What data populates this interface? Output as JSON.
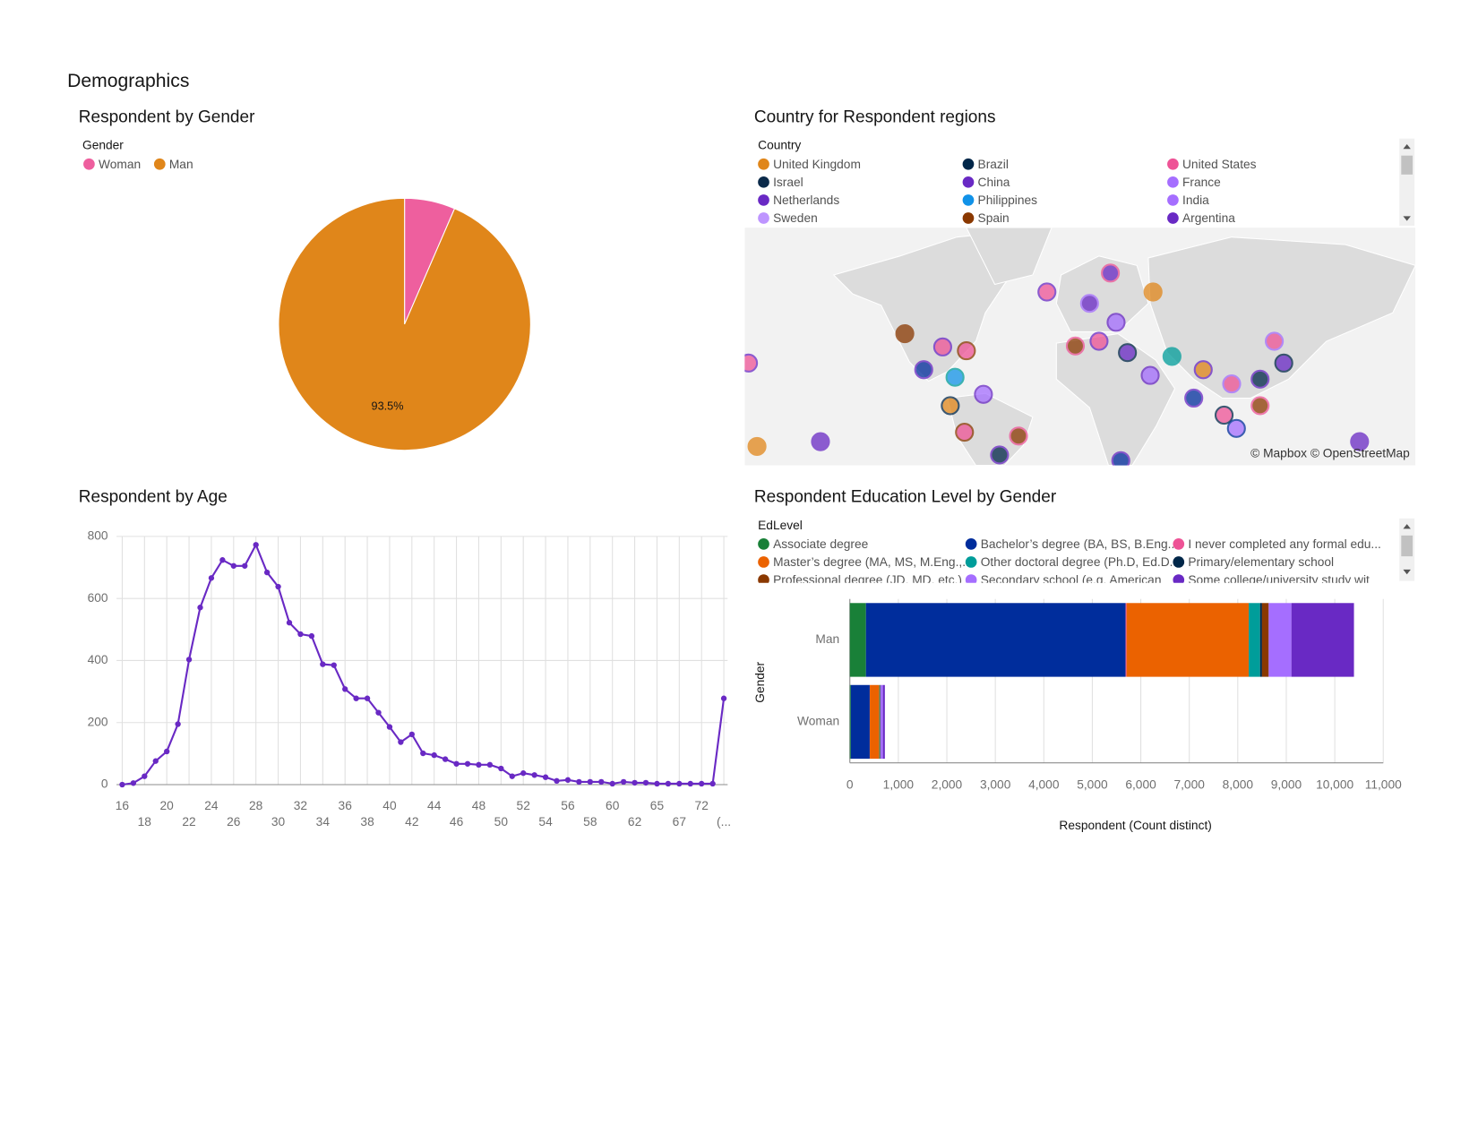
{
  "page_title": "Demographics",
  "chart_data": [
    {
      "type": "pie",
      "title": "Respondent by Gender",
      "legend_title": "Gender",
      "categories": [
        "Woman",
        "Man"
      ],
      "values": [
        6.5,
        93.5
      ],
      "value_labels": [
        null,
        "93.5%"
      ],
      "colors": [
        "#ee5f9e",
        "#e0861a"
      ]
    },
    {
      "type": "map",
      "title": "Country for Respondent regions",
      "legend_title": "Country",
      "series": [
        {
          "name": "United Kingdom",
          "color": "#e0861a"
        },
        {
          "name": "Brazil",
          "color": "#012749"
        },
        {
          "name": "United States",
          "color": "#ee5396"
        },
        {
          "name": "Israel",
          "color": "#0b2a4a"
        },
        {
          "name": "China",
          "color": "#6929c4"
        },
        {
          "name": "France",
          "color": "#a56eff"
        },
        {
          "name": "Netherlands",
          "color": "#6929c4"
        },
        {
          "name": "Philippines",
          "color": "#1192e8"
        },
        {
          "name": "India",
          "color": "#a56eff"
        },
        {
          "name": "Sweden",
          "color": "#be95ff"
        },
        {
          "name": "Spain",
          "color": "#8a3800"
        },
        {
          "name": "Argentina",
          "color": "#6929c4"
        }
      ],
      "attribution": "© Mapbox © OpenStreetMap"
    },
    {
      "type": "line",
      "title": "Respondent by Age",
      "color": "#6929c4",
      "categories": [
        "16",
        null,
        "18",
        null,
        "20",
        null,
        "22",
        null,
        "24",
        null,
        "26",
        null,
        "28",
        null,
        "30",
        null,
        "32",
        null,
        "34",
        null,
        "36",
        null,
        "38",
        null,
        "40",
        null,
        "42",
        null,
        "44",
        null,
        "46",
        null,
        "48",
        null,
        "50",
        null,
        "52",
        null,
        "54",
        null,
        "56",
        null,
        "58",
        null,
        "60",
        null,
        "62",
        null,
        "65",
        null,
        "67",
        null,
        "72",
        null,
        "(..."
      ],
      "values": [
        0,
        5,
        27,
        76,
        107,
        195,
        403,
        571,
        666,
        724,
        705,
        705,
        773,
        684,
        638,
        522,
        485,
        479,
        388,
        385,
        308,
        278,
        278,
        232,
        186,
        137,
        162,
        101,
        95,
        82,
        67,
        67,
        64,
        64,
        52,
        27,
        37,
        31,
        24,
        12,
        15,
        9,
        9,
        9,
        3,
        9,
        6,
        6,
        3,
        3,
        3,
        3,
        3,
        3,
        278
      ],
      "ylim": [
        0,
        800
      ],
      "yticks": [
        0,
        200,
        400,
        600,
        800
      ],
      "grid": true
    },
    {
      "type": "bar",
      "orientation": "horizontal",
      "stacked": true,
      "title": "Respondent Education Level by Gender",
      "legend_title": "EdLevel",
      "x_label": "Respondent (Count distinct)",
      "y_label": "Gender",
      "categories": [
        "Man",
        "Woman"
      ],
      "series": [
        {
          "name": "Associate degree",
          "color": "#198038",
          "values": [
            332,
            20
          ]
        },
        {
          "name": "Bachelor’s degree (BA, BS, B.Eng....",
          "color": "#002d9c",
          "values": [
            5354,
            390
          ]
        },
        {
          "name": "I never completed any formal edu...",
          "color": "#ee5396",
          "values": [
            20,
            2
          ]
        },
        {
          "name": "Master’s degree (MA, MS, M.Eng.,...",
          "color": "#eb6200",
          "values": [
            2520,
            195
          ]
        },
        {
          "name": "Other doctoral degree (Ph.D, Ed.D...",
          "color": "#009d9a",
          "values": [
            234,
            15
          ]
        },
        {
          "name": "Primary/elementary school",
          "color": "#012749",
          "values": [
            40,
            2
          ]
        },
        {
          "name": "Professional degree (JD, MD, etc.)",
          "color": "#8a3800",
          "values": [
            137,
            8
          ]
        },
        {
          "name": "Secondary school (e.g. American",
          "color": "#a56eff",
          "values": [
            469,
            50
          ]
        },
        {
          "name": "Some college/university study wit",
          "color": "#6929c4",
          "values": [
            1290,
            40
          ]
        }
      ],
      "xlim": [
        0,
        11000
      ],
      "xticks": [
        0,
        {
          "value": 1000,
          "label": "1,000"
        },
        {
          "value": 2000,
          "label": "2,000"
        },
        {
          "value": 3000,
          "label": "3,000"
        },
        {
          "value": 4000,
          "label": "4,000"
        },
        {
          "value": 5000,
          "label": "5,000"
        },
        {
          "value": 6000,
          "label": "6,000"
        },
        {
          "value": 7000,
          "label": "7,000"
        },
        {
          "value": 8000,
          "label": "8,000"
        },
        {
          "value": 9000,
          "label": "9,000"
        },
        {
          "value": 10000,
          "label": "10,000"
        },
        {
          "value": 11000,
          "label": "11,000"
        }
      ],
      "grid": true
    }
  ]
}
